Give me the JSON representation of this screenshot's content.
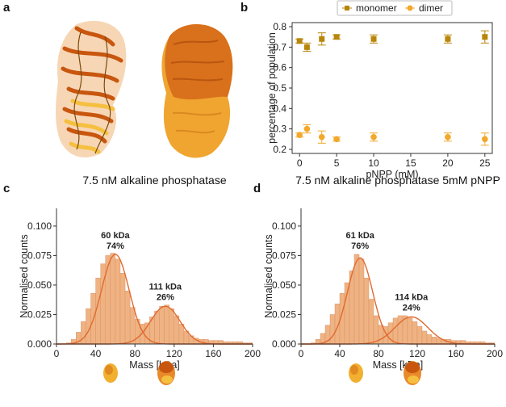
{
  "panels": {
    "a": "a",
    "b": "b",
    "c": "c",
    "d": "d"
  },
  "colors": {
    "monomer": "#b8860b",
    "dimer": "#f2a82a",
    "hist_fill": "#efb383",
    "hist_edge": "#d9895a",
    "fit": "#e06a30",
    "protein_dark": "#c8560e",
    "protein_mid": "#e98a2a",
    "protein_light": "#f5c040"
  },
  "chart_data": [
    {
      "id": "b",
      "type": "scatter",
      "title": "",
      "xlabel": "pNPP (mM)",
      "ylabel": "percentage of population",
      "xlim": [
        -1,
        26
      ],
      "ylim": [
        0.18,
        0.82
      ],
      "xticks": [
        0,
        5,
        10,
        15,
        20,
        25
      ],
      "yticks": [
        0.2,
        0.3,
        0.4,
        0.5,
        0.6,
        0.7,
        0.8
      ],
      "ytick_labels": [
        "0.2",
        "0.3",
        "0.4",
        "0.5",
        "0.6",
        "0.7",
        "0.8"
      ],
      "legend": [
        "monomer",
        "dimer"
      ],
      "legend_position": "top",
      "series": [
        {
          "name": "monomer",
          "marker": "square",
          "x": [
            0,
            1,
            3,
            5,
            10,
            20,
            25
          ],
          "y": [
            0.73,
            0.7,
            0.74,
            0.75,
            0.74,
            0.74,
            0.75
          ],
          "err": [
            0.01,
            0.02,
            0.03,
            0.01,
            0.02,
            0.02,
            0.03
          ]
        },
        {
          "name": "dimer",
          "marker": "circle",
          "x": [
            0,
            1,
            3,
            5,
            10,
            20,
            25
          ],
          "y": [
            0.27,
            0.3,
            0.26,
            0.25,
            0.26,
            0.26,
            0.25
          ],
          "err": [
            0.01,
            0.02,
            0.03,
            0.01,
            0.02,
            0.02,
            0.03
          ]
        }
      ]
    },
    {
      "id": "c",
      "type": "bar",
      "title": "7.5 nM alkaline phosphatase",
      "xlabel": "Mass [kDa]",
      "ylabel": "Normalised counts",
      "xlim": [
        0,
        200
      ],
      "ylim": [
        0,
        0.115
      ],
      "xticks": [
        0,
        40,
        80,
        120,
        160,
        200
      ],
      "yticks": [
        0,
        0.025,
        0.05,
        0.075,
        0.1
      ],
      "ytick_labels": [
        "0.000",
        "0.025",
        "0.050",
        "0.075",
        "0.100"
      ],
      "bin_start": 10,
      "bin_width": 5,
      "values": [
        0.001,
        0.004,
        0.01,
        0.019,
        0.03,
        0.043,
        0.056,
        0.068,
        0.075,
        0.077,
        0.072,
        0.06,
        0.045,
        0.031,
        0.021,
        0.017,
        0.018,
        0.023,
        0.028,
        0.032,
        0.033,
        0.03,
        0.024,
        0.017,
        0.011,
        0.007,
        0.005,
        0.004,
        0.004,
        0.003,
        0.003,
        0.003,
        0.002,
        0.002,
        0.002,
        0.002,
        0.001,
        0.001
      ],
      "fits": [
        {
          "center": 60,
          "sigma": 14,
          "amplitude": 0.076
        },
        {
          "center": 111,
          "sigma": 15,
          "amplitude": 0.032
        }
      ],
      "annotations": [
        {
          "x": 60,
          "y": 0.0775,
          "line1": "60 kDa",
          "line2": "74%"
        },
        {
          "x": 111,
          "y": 0.034,
          "line1": "111 kDa",
          "line2": "26%"
        }
      ]
    },
    {
      "id": "d",
      "type": "bar",
      "title": "7.5 nM alkaline phosphatase 5mM pNPP",
      "xlabel": "Mass [kDa]",
      "ylabel": "Normalised counts",
      "xlim": [
        0,
        200
      ],
      "ylim": [
        0,
        0.115
      ],
      "xticks": [
        0,
        40,
        80,
        120,
        160,
        200
      ],
      "yticks": [
        0,
        0.025,
        0.05,
        0.075,
        0.1
      ],
      "ytick_labels": [
        "0.000",
        "0.025",
        "0.050",
        "0.075",
        "0.100"
      ],
      "bin_start": 10,
      "bin_width": 5,
      "values": [
        0.001,
        0.004,
        0.009,
        0.016,
        0.025,
        0.034,
        0.043,
        0.052,
        0.062,
        0.076,
        0.072,
        0.056,
        0.038,
        0.024,
        0.016,
        0.015,
        0.018,
        0.022,
        0.024,
        0.024,
        0.022,
        0.019,
        0.015,
        0.011,
        0.008,
        0.006,
        0.005,
        0.004,
        0.004,
        0.003,
        0.003,
        0.003,
        0.002,
        0.002,
        0.002,
        0.002,
        0.001,
        0.001
      ],
      "fits": [
        {
          "center": 61,
          "sigma": 13,
          "amplitude": 0.073
        },
        {
          "center": 114,
          "sigma": 17,
          "amplitude": 0.023
        }
      ],
      "annotations": [
        {
          "x": 61,
          "y": 0.0775,
          "line1": "61 kDa",
          "line2": "76%"
        },
        {
          "x": 114,
          "y": 0.025,
          "line1": "114 kDa",
          "line2": "24%"
        }
      ]
    }
  ]
}
